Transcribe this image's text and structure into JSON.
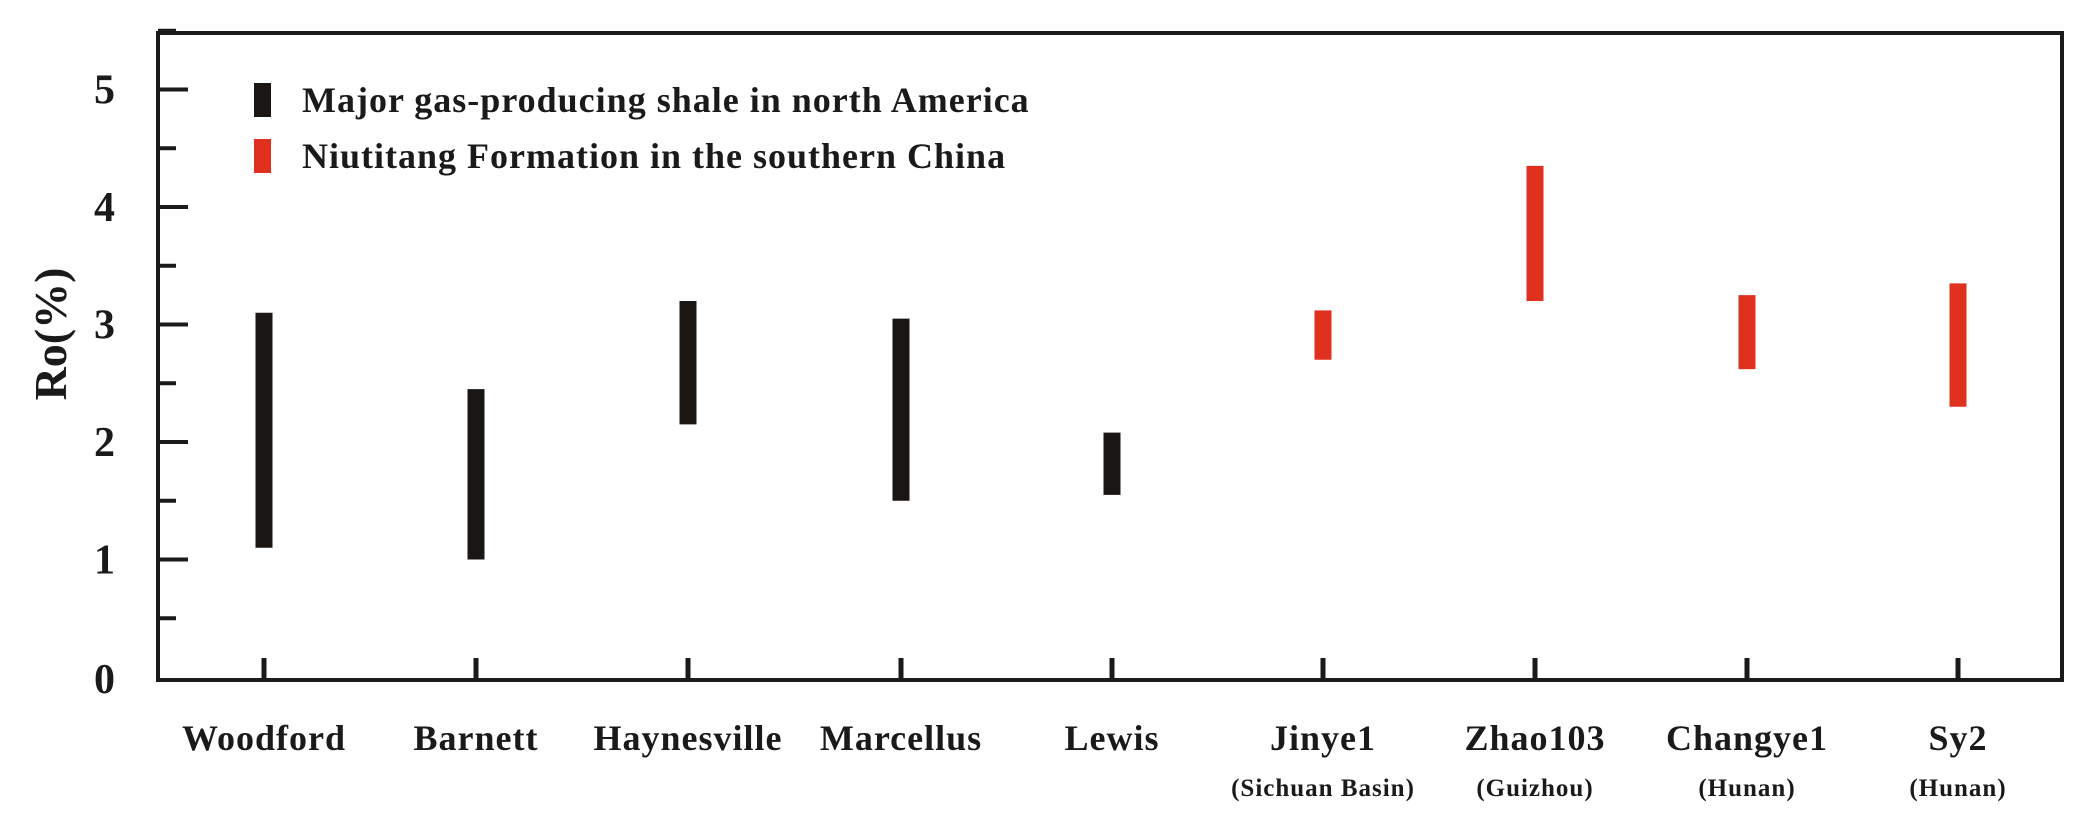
{
  "chart_data": {
    "type": "bar",
    "title": "",
    "xlabel": "",
    "ylabel": "Ro(%)",
    "ylim": [
      0,
      5.5
    ],
    "yticks": [
      "0",
      "1",
      "2",
      "3",
      "4",
      "5"
    ],
    "grid": false,
    "legend_position": "top-left",
    "categories": [
      {
        "name": "Woodford",
        "sub": ""
      },
      {
        "name": "Barnett",
        "sub": ""
      },
      {
        "name": "Haynesville",
        "sub": ""
      },
      {
        "name": "Marcellus",
        "sub": ""
      },
      {
        "name": "Lewis",
        "sub": ""
      },
      {
        "name": "Jinye1",
        "sub": "(Sichuan Basin)"
      },
      {
        "name": "Zhao103",
        "sub": "(Guizhou)"
      },
      {
        "name": "Changye1",
        "sub": "(Hunan)"
      },
      {
        "name": "Sy2",
        "sub": "(Hunan)"
      }
    ],
    "series": [
      {
        "name": "Major gas-producing shale in north America",
        "color": "#1a1613",
        "ranges": [
          {
            "category": "Woodford",
            "min": 1.1,
            "max": 3.1
          },
          {
            "category": "Barnett",
            "min": 1.0,
            "max": 2.45
          },
          {
            "category": "Haynesville",
            "min": 2.15,
            "max": 3.2
          },
          {
            "category": "Marcellus",
            "min": 1.5,
            "max": 3.05
          },
          {
            "category": "Lewis",
            "min": 1.55,
            "max": 2.08
          }
        ]
      },
      {
        "name": "Niutitang Formation in the southern China",
        "color": "#e0301e",
        "ranges": [
          {
            "category": "Jinye1",
            "min": 2.7,
            "max": 3.12
          },
          {
            "category": "Zhao103",
            "min": 3.2,
            "max": 4.35
          },
          {
            "category": "Changye1",
            "min": 2.62,
            "max": 3.25
          },
          {
            "category": "Sy2",
            "min": 2.3,
            "max": 3.35
          }
        ]
      }
    ]
  }
}
